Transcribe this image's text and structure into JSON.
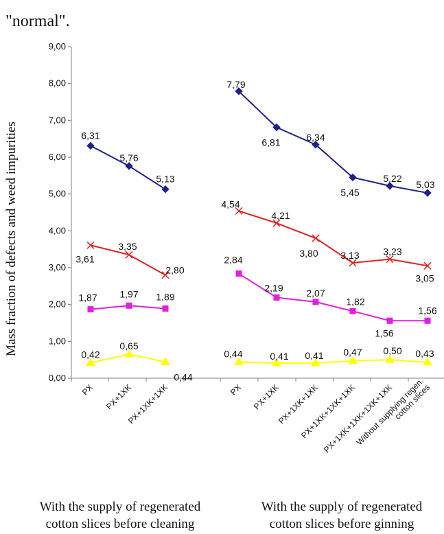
{
  "header_text": "\"normal\".",
  "chart_data": {
    "type": "line",
    "ylabel": "Mass fraction of defects and weed impurities",
    "ylim": [
      0,
      9
    ],
    "yticks": [
      "0,00",
      "1,00",
      "2,00",
      "3,00",
      "4,00",
      "5,00",
      "6,00",
      "7,00",
      "8,00",
      "9,00"
    ],
    "colors": {
      "s1": "#1f1f8f",
      "s2": "#e02020",
      "s3": "#e020e0",
      "s4": "#ffff00"
    },
    "groups": [
      {
        "caption": [
          "With the supply of regenerated",
          "cotton slices before cleaning"
        ],
        "categories": [
          [
            "PX"
          ],
          [
            "PX+1XK"
          ],
          [
            "PX+1XK+1XK"
          ]
        ],
        "series": [
          {
            "key": "s1",
            "marker": "diamond",
            "values": [
              6.31,
              5.76,
              5.13
            ],
            "labels": [
              "6,31",
              "5,76",
              "5,13"
            ]
          },
          {
            "key": "s2",
            "marker": "x",
            "values": [
              3.61,
              3.35,
              2.8
            ],
            "labels": [
              "3,61",
              "3,35",
              "2,80"
            ]
          },
          {
            "key": "s3",
            "marker": "square",
            "values": [
              1.87,
              1.97,
              1.89
            ],
            "labels": [
              "1,87",
              "1,97",
              "1,89"
            ]
          },
          {
            "key": "s4",
            "marker": "triangle",
            "values": [
              0.42,
              0.65,
              0.44
            ],
            "labels": [
              "0,42",
              "0,65",
              "0,44"
            ]
          }
        ]
      },
      {
        "caption": [
          "With the supply of regenerated",
          "cotton slices before ginning"
        ],
        "categories": [
          [
            "PX"
          ],
          [
            "PX+1XK"
          ],
          [
            "PX+1XK+1XK"
          ],
          [
            "PX+1XK+1XK+1XK"
          ],
          [
            "PX+1XK+1XK+1XK+1XK"
          ],
          [
            "Without supplying regen.",
            "cotton slices"
          ]
        ],
        "series": [
          {
            "key": "s1",
            "marker": "diamond",
            "values": [
              7.79,
              6.81,
              6.34,
              5.45,
              5.22,
              5.03
            ],
            "labels": [
              "7,79",
              "6,81",
              "6,34",
              "5,45",
              "5,22",
              "5,03"
            ]
          },
          {
            "key": "s2",
            "marker": "x",
            "values": [
              4.54,
              4.21,
              3.8,
              3.13,
              3.23,
              3.05
            ],
            "labels": [
              "4,54",
              "4,21",
              "3,80",
              "3,13",
              "3,23",
              "3,05"
            ]
          },
          {
            "key": "s3",
            "marker": "square",
            "values": [
              2.84,
              2.19,
              2.07,
              1.82,
              1.56,
              1.56
            ],
            "labels": [
              "2,84",
              "2,19",
              "2,07",
              "1,82",
              "1,56",
              "1,56"
            ]
          },
          {
            "key": "s4",
            "marker": "triangle",
            "values": [
              0.44,
              0.41,
              0.41,
              0.47,
              0.5,
              0.43
            ],
            "labels": [
              "0,44",
              "0,41",
              "0,41",
              "0,47",
              "0,50",
              "0,43"
            ]
          }
        ]
      }
    ]
  }
}
